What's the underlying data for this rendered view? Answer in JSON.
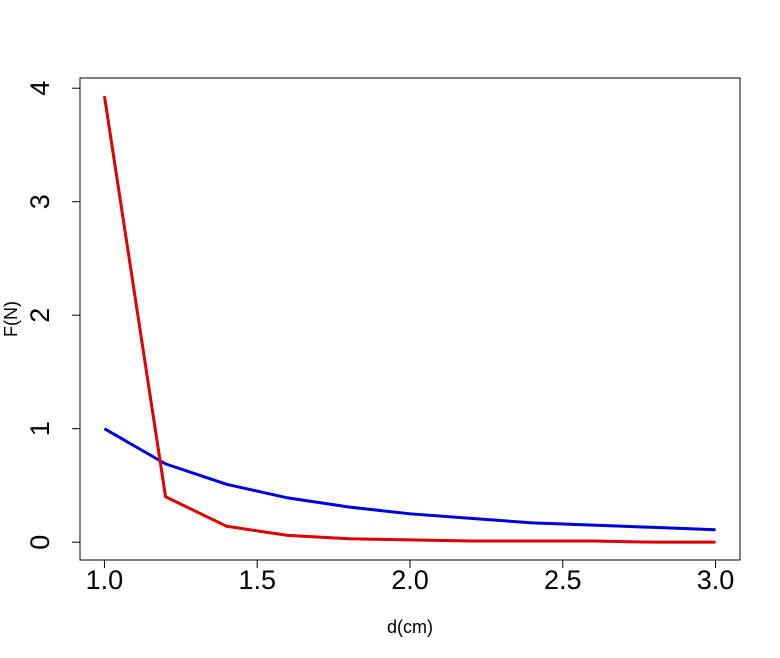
{
  "chart_data": {
    "type": "line",
    "x_label": "d(cm)",
    "y_label": "F(N)",
    "x": [
      1.0,
      1.2,
      1.4,
      1.6,
      1.8,
      2.0,
      2.2,
      2.4,
      2.6,
      2.8,
      3.0
    ],
    "series": [
      {
        "color": "#0000dd",
        "values": [
          1.0,
          0.69,
          0.51,
          0.39,
          0.31,
          0.25,
          0.21,
          0.17,
          0.15,
          0.13,
          0.11
        ]
      },
      {
        "color": "#dd0000",
        "values": [
          3.93,
          0.4,
          0.14,
          0.06,
          0.03,
          0.02,
          0.01,
          0.01,
          0.01,
          0.0,
          0.0
        ]
      }
    ],
    "xlim": [
      0.92,
      3.08
    ],
    "ylim": [
      -0.157,
      4.09
    ],
    "xticks": [
      {
        "value": 1.0,
        "label": "1.0"
      },
      {
        "value": 1.5,
        "label": "1.5"
      },
      {
        "value": 2.0,
        "label": "2.0"
      },
      {
        "value": 2.5,
        "label": "2.5"
      },
      {
        "value": 3.0,
        "label": "3.0"
      }
    ],
    "yticks": [
      0,
      1,
      2,
      3,
      4
    ]
  }
}
